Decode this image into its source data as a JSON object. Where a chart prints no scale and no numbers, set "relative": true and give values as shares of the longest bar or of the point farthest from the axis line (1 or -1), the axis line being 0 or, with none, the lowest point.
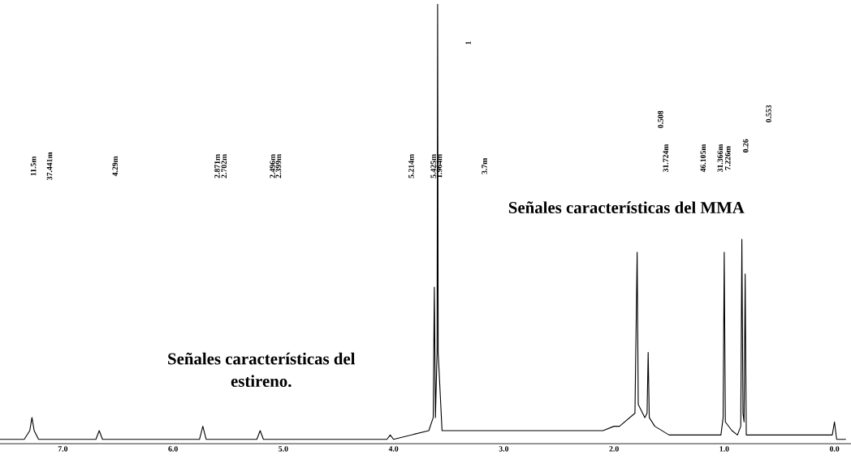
{
  "chart_data": {
    "type": "line",
    "relative": true,
    "xlim": [
      7.57,
      -0.15
    ],
    "xticks": [
      {
        "value": 7,
        "label": "7.0"
      },
      {
        "value": 6,
        "label": "6.0"
      },
      {
        "value": 5,
        "label": "5.0"
      },
      {
        "value": 4,
        "label": "4.0"
      },
      {
        "value": 3,
        "label": "3.0"
      },
      {
        "value": 2,
        "label": "2.0"
      },
      {
        "value": 1,
        "label": "1.0"
      },
      {
        "value": 0,
        "label": "0.0"
      }
    ],
    "grid": false,
    "legend": false,
    "series": [
      {
        "color": "#000000",
        "x": [
          7.57,
          7.35,
          7.3,
          7.28,
          7.26,
          7.22,
          6.7,
          6.67,
          6.64,
          5.76,
          5.73,
          5.7,
          5.24,
          5.21,
          5.18,
          4.06,
          4.03,
          4.0,
          3.68,
          3.64,
          3.63,
          3.62,
          3.605,
          3.6,
          3.595,
          3.56,
          2.1,
          2.0,
          1.95,
          1.81,
          1.79,
          1.78,
          1.72,
          1.7,
          1.69,
          1.68,
          1.63,
          1.5,
          1.03,
          1.01,
          1.0,
          0.99,
          0.93,
          0.88,
          0.85,
          0.84,
          0.83,
          0.82,
          0.81,
          0.8,
          0.1,
          0.02,
          0.0,
          -0.02,
          -0.1
        ],
        "values": [
          0,
          0,
          0.02,
          0.05,
          0.02,
          0,
          0,
          0.02,
          0,
          0,
          0.03,
          0,
          0,
          0.02,
          0,
          0,
          0.01,
          0,
          0.02,
          0.05,
          0.35,
          0.05,
          0.2,
          1.0,
          0.2,
          0.02,
          0.02,
          0.03,
          0.03,
          0.06,
          0.43,
          0.08,
          0.05,
          0.06,
          0.2,
          0.05,
          0.03,
          0.01,
          0.01,
          0.05,
          0.43,
          0.04,
          0.02,
          0.01,
          0.03,
          0.46,
          0.06,
          0.04,
          0.38,
          0.01,
          0.01,
          0.01,
          0.04,
          0,
          0
        ]
      }
    ],
    "annotations": [
      "11.5m",
      "37.441m",
      "4.29m",
      "2.871m",
      "2.702m",
      "2.496m",
      "2.399m",
      "5.214m",
      "5.425m",
      "1.964m",
      "3.7m",
      "1",
      "0.508",
      "31.724m",
      "46.105m",
      "31.366m",
      "7.226m",
      "0.26",
      "0.553",
      "Señales características del\nestireno.",
      "Señales características del MMA"
    ]
  }
}
